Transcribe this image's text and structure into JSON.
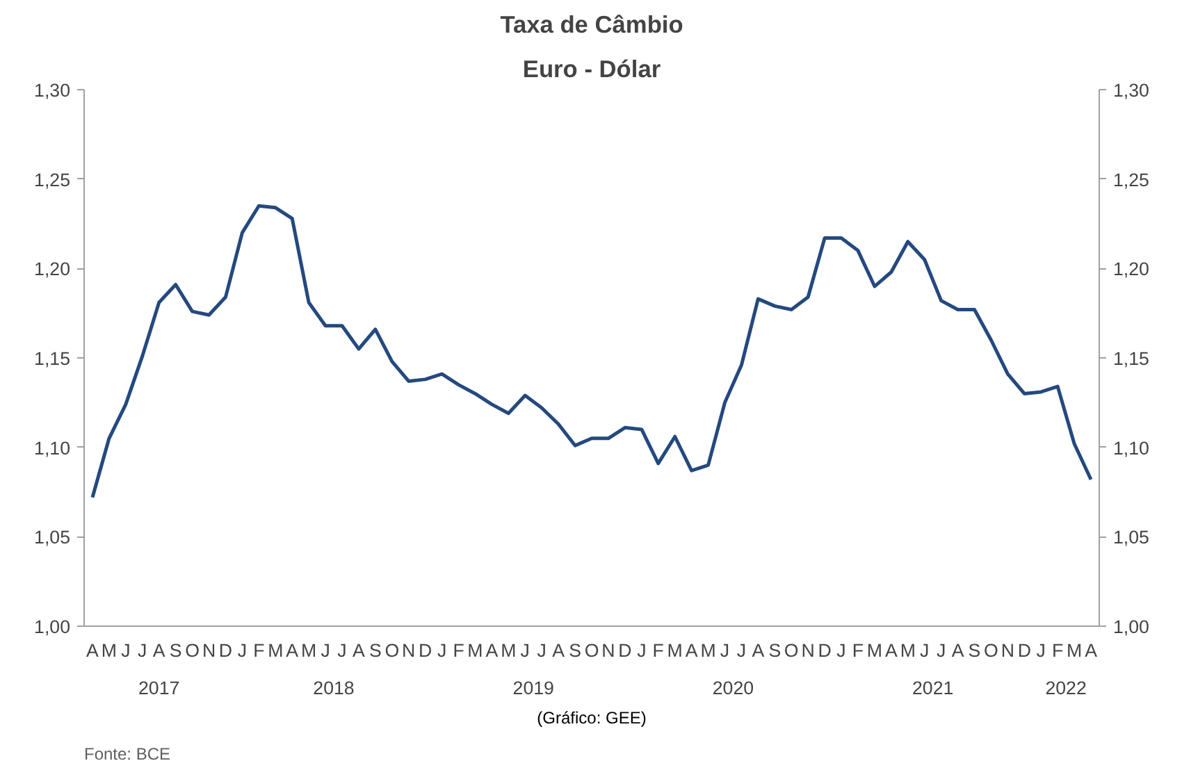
{
  "chart_data": {
    "type": "line",
    "title": "Taxa de Câmbio",
    "subtitle": "Euro - Dólar",
    "categories": [
      "A",
      "M",
      "J",
      "J",
      "A",
      "S",
      "O",
      "N",
      "D",
      "J",
      "F",
      "M",
      "A",
      "M",
      "J",
      "J",
      "A",
      "S",
      "O",
      "N",
      "D",
      "J",
      "F",
      "M",
      "A",
      "M",
      "J",
      "J",
      "A",
      "S",
      "O",
      "N",
      "D",
      "J",
      "F",
      "M",
      "A",
      "M",
      "J",
      "J",
      "A",
      "S",
      "O",
      "N",
      "D",
      "J",
      "F",
      "M",
      "A",
      "M",
      "J",
      "J",
      "A",
      "S",
      "O",
      "N",
      "D",
      "J",
      "F",
      "M",
      "A"
    ],
    "series": [
      {
        "color": "#24497f",
        "values": [
          1.072,
          1.105,
          1.124,
          1.151,
          1.181,
          1.191,
          1.176,
          1.174,
          1.184,
          1.22,
          1.235,
          1.234,
          1.228,
          1.181,
          1.168,
          1.168,
          1.155,
          1.166,
          1.148,
          1.137,
          1.138,
          1.141,
          1.135,
          1.13,
          1.124,
          1.119,
          1.129,
          1.122,
          1.113,
          1.101,
          1.105,
          1.105,
          1.111,
          1.11,
          1.091,
          1.106,
          1.087,
          1.09,
          1.125,
          1.146,
          1.183,
          1.179,
          1.177,
          1.184,
          1.217,
          1.217,
          1.21,
          1.19,
          1.198,
          1.215,
          1.205,
          1.182,
          1.177,
          1.177,
          1.16,
          1.141,
          1.13,
          1.131,
          1.134,
          1.102,
          1.082
        ]
      }
    ],
    "ylim": [
      1.0,
      1.3
    ],
    "yticks": [
      {
        "value": 1.0,
        "label": "1,00"
      },
      {
        "value": 1.05,
        "label": "1,05"
      },
      {
        "value": 1.1,
        "label": "1,10"
      },
      {
        "value": 1.15,
        "label": "1,15"
      },
      {
        "value": 1.2,
        "label": "1,20"
      },
      {
        "value": 1.25,
        "label": "1,25"
      },
      {
        "value": 1.3,
        "label": "1,30"
      }
    ],
    "y2lim": [
      1.0,
      1.3
    ],
    "y2ticks": [
      {
        "value": 1.0,
        "label": "1,00"
      },
      {
        "value": 1.05,
        "label": "1,05"
      },
      {
        "value": 1.1,
        "label": "1,10"
      },
      {
        "value": 1.15,
        "label": "1,15"
      },
      {
        "value": 1.2,
        "label": "1,20"
      },
      {
        "value": 1.25,
        "label": "1,25"
      },
      {
        "value": 1.3,
        "label": "1,30"
      }
    ],
    "annotations": [
      "2017",
      "2018",
      "2019",
      "2020",
      "2021",
      "2022",
      "(Gráfico: GEE)",
      "Fonte: BCE"
    ],
    "grid": false,
    "marker": "none",
    "line_style": "solid"
  }
}
